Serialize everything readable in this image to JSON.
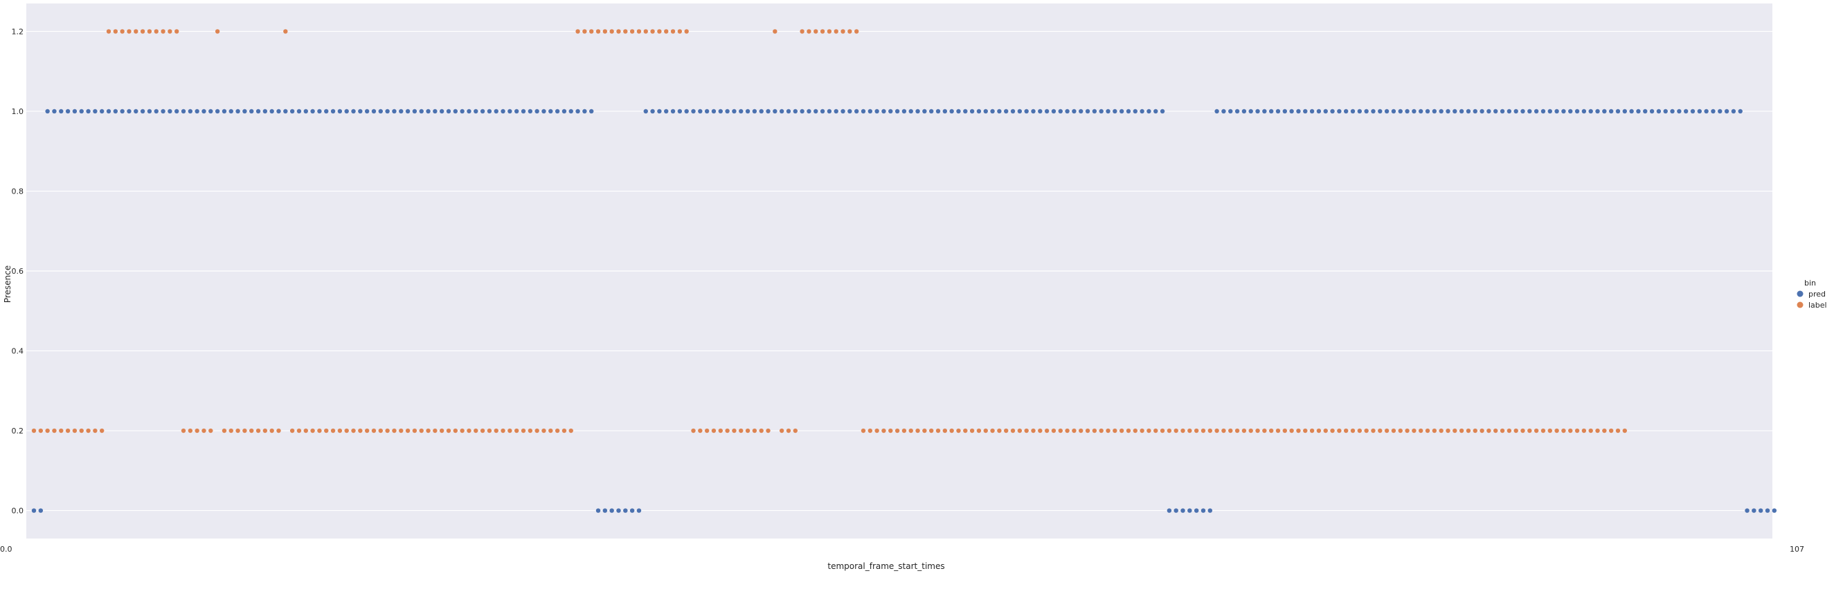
{
  "chart_data": {
    "type": "scatter",
    "xlabel": "temporal_frame_start_times",
    "ylabel": "Presence",
    "ylim": [
      -0.07,
      1.27
    ],
    "yticks": [
      "0.0",
      "0.2",
      "0.4",
      "0.6",
      "0.8",
      "1.0",
      "1.2"
    ],
    "x_tick_first": "0.0",
    "x_tick_last": "107",
    "x_count": 256,
    "grid": true,
    "legend_title": "bin",
    "legend_position": "right",
    "series": [
      {
        "name": "pred",
        "color": "#4c72b0",
        "values": [
          0,
          0,
          1,
          1,
          1,
          1,
          1,
          1,
          1,
          1,
          1,
          1,
          1,
          1,
          1,
          1,
          1,
          1,
          1,
          1,
          1,
          1,
          1,
          1,
          1,
          1,
          1,
          1,
          1,
          1,
          1,
          1,
          1,
          1,
          1,
          1,
          1,
          1,
          1,
          1,
          1,
          1,
          1,
          1,
          1,
          1,
          1,
          1,
          1,
          1,
          1,
          1,
          1,
          1,
          1,
          1,
          1,
          1,
          1,
          1,
          1,
          1,
          1,
          1,
          1,
          1,
          1,
          1,
          1,
          1,
          1,
          1,
          1,
          1,
          1,
          1,
          1,
          1,
          1,
          1,
          1,
          1,
          1,
          0,
          0,
          0,
          0,
          0,
          0,
          0,
          1,
          1,
          1,
          1,
          1,
          1,
          1,
          1,
          1,
          1,
          1,
          1,
          1,
          1,
          1,
          1,
          1,
          1,
          1,
          1,
          1,
          1,
          1,
          1,
          1,
          1,
          1,
          1,
          1,
          1,
          1,
          1,
          1,
          1,
          1,
          1,
          1,
          1,
          1,
          1,
          1,
          1,
          1,
          1,
          1,
          1,
          1,
          1,
          1,
          1,
          1,
          1,
          1,
          1,
          1,
          1,
          1,
          1,
          1,
          1,
          1,
          1,
          1,
          1,
          1,
          1,
          1,
          1,
          1,
          1,
          1,
          1,
          1,
          1,
          1,
          1,
          1,
          0,
          0,
          0,
          0,
          0,
          0,
          0,
          1,
          1,
          1,
          1,
          1,
          1,
          1,
          1,
          1,
          1,
          1,
          1,
          1,
          1,
          1,
          1,
          1,
          1,
          1,
          1,
          1,
          1,
          1,
          1,
          1,
          1,
          1,
          1,
          1,
          1,
          1,
          1,
          1,
          1,
          1,
          1,
          1,
          1,
          1,
          1,
          1,
          1,
          1,
          1,
          1,
          1,
          1,
          1,
          1,
          1,
          1,
          1,
          1,
          1,
          1,
          1,
          1,
          1,
          1,
          1,
          1,
          1,
          1,
          1,
          1,
          1,
          1,
          1,
          1,
          1,
          1,
          1,
          1,
          1,
          1,
          1,
          1,
          1,
          0,
          0,
          0,
          0,
          0
        ]
      },
      {
        "name": "label",
        "color": "#dd8452",
        "values": [
          0.2,
          0.2,
          0.2,
          0.2,
          0.2,
          0.2,
          0.2,
          0.2,
          0.2,
          0.2,
          0.2,
          1.2,
          1.2,
          1.2,
          1.2,
          1.2,
          1.2,
          1.2,
          1.2,
          1.2,
          1.2,
          1.2,
          0.2,
          0.2,
          0.2,
          0.2,
          0.2,
          1.2,
          0.2,
          0.2,
          0.2,
          0.2,
          0.2,
          0.2,
          0.2,
          0.2,
          0.2,
          1.2,
          0.2,
          0.2,
          0.2,
          0.2,
          0.2,
          0.2,
          0.2,
          0.2,
          0.2,
          0.2,
          0.2,
          0.2,
          0.2,
          0.2,
          0.2,
          0.2,
          0.2,
          0.2,
          0.2,
          0.2,
          0.2,
          0.2,
          0.2,
          0.2,
          0.2,
          0.2,
          0.2,
          0.2,
          0.2,
          0.2,
          0.2,
          0.2,
          0.2,
          0.2,
          0.2,
          0.2,
          0.2,
          0.2,
          0.2,
          0.2,
          0.2,
          0.2,
          1.2,
          1.2,
          1.2,
          1.2,
          1.2,
          1.2,
          1.2,
          1.2,
          1.2,
          1.2,
          1.2,
          1.2,
          1.2,
          1.2,
          1.2,
          1.2,
          1.2,
          0.2,
          0.2,
          0.2,
          0.2,
          0.2,
          0.2,
          0.2,
          0.2,
          0.2,
          0.2,
          0.2,
          0.2,
          1.2,
          0.2,
          0.2,
          0.2,
          1.2,
          1.2,
          1.2,
          1.2,
          1.2,
          1.2,
          1.2,
          1.2,
          1.2,
          0.2,
          0.2,
          0.2,
          0.2,
          0.2,
          0.2,
          0.2,
          0.2,
          0.2,
          0.2,
          0.2,
          0.2,
          0.2,
          0.2,
          0.2,
          0.2,
          0.2,
          0.2,
          0.2,
          0.2,
          0.2,
          0.2,
          0.2,
          0.2,
          0.2,
          0.2,
          0.2,
          0.2,
          0.2,
          0.2,
          0.2,
          0.2,
          0.2,
          0.2,
          0.2,
          0.2,
          0.2,
          0.2,
          0.2,
          0.2,
          0.2,
          0.2,
          0.2,
          0.2,
          0.2,
          0.2,
          0.2,
          0.2,
          0.2,
          0.2,
          0.2,
          0.2,
          0.2,
          0.2,
          0.2,
          0.2,
          0.2,
          0.2,
          0.2,
          0.2,
          0.2,
          0.2,
          0.2,
          0.2,
          0.2,
          0.2,
          0.2,
          0.2,
          0.2,
          0.2,
          0.2,
          0.2,
          0.2,
          0.2,
          0.2,
          0.2,
          0.2,
          0.2,
          0.2,
          0.2,
          0.2,
          0.2,
          0.2,
          0.2,
          0.2,
          0.2,
          0.2,
          0.2,
          0.2,
          0.2,
          0.2,
          0.2,
          0.2,
          0.2,
          0.2,
          0.2,
          0.2,
          0.2,
          0.2,
          0.2,
          0.2,
          0.2,
          0.2,
          0.2,
          0.2,
          0.2,
          0.2,
          0.2,
          0.2,
          0.2,
          0.2,
          0.2,
          0.2
        ]
      }
    ]
  }
}
